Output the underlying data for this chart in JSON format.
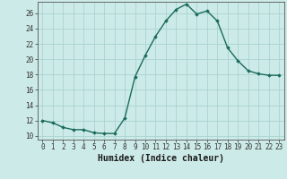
{
  "x": [
    0,
    1,
    2,
    3,
    4,
    5,
    6,
    7,
    8,
    9,
    10,
    11,
    12,
    13,
    14,
    15,
    16,
    17,
    18,
    19,
    20,
    21,
    22,
    23
  ],
  "y": [
    12,
    11.7,
    11.1,
    10.8,
    10.8,
    10.4,
    10.3,
    10.3,
    12.3,
    17.7,
    20.5,
    23.0,
    25.0,
    26.5,
    27.2,
    25.9,
    26.3,
    25.0,
    21.5,
    19.8,
    18.5,
    18.1,
    17.9,
    17.9
  ],
  "line_color": "#1a6b5a",
  "marker": "D",
  "marker_size": 1.8,
  "bg_color": "#cceae7",
  "grid_color": "#aad4d0",
  "xlabel": "Humidex (Indice chaleur)",
  "xlim": [
    -0.5,
    23.5
  ],
  "ylim": [
    9.5,
    27.5
  ],
  "yticks": [
    10,
    12,
    14,
    16,
    18,
    20,
    22,
    24,
    26
  ],
  "xticks": [
    0,
    1,
    2,
    3,
    4,
    5,
    6,
    7,
    8,
    9,
    10,
    11,
    12,
    13,
    14,
    15,
    16,
    17,
    18,
    19,
    20,
    21,
    22,
    23
  ],
  "tick_fontsize": 5.5,
  "xlabel_fontsize": 7.0
}
